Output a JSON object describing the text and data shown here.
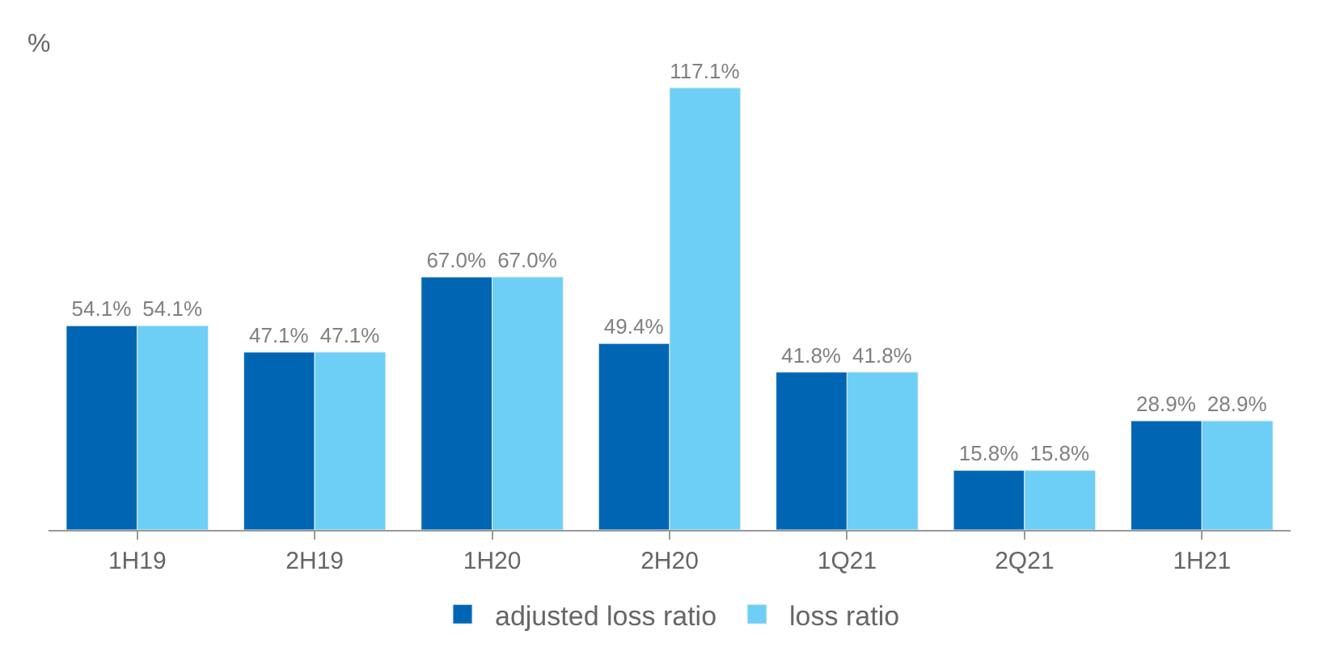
{
  "chart_data": {
    "type": "bar",
    "ylabel": "%",
    "categories": [
      "1H19",
      "2H19",
      "1H20",
      "2H20",
      "1Q21",
      "2Q21",
      "1H21"
    ],
    "series": [
      {
        "name": "adjusted loss ratio",
        "color": "#0066b3",
        "values": [
          54.1,
          47.1,
          67.0,
          49.4,
          41.8,
          15.8,
          28.9
        ],
        "value_labels": [
          "54.1%",
          "47.1%",
          "67.0%",
          "49.4%",
          "41.8%",
          "15.8%",
          "28.9%"
        ]
      },
      {
        "name": "loss ratio",
        "color": "#6ecff6",
        "values": [
          54.1,
          47.1,
          67.0,
          117.1,
          41.8,
          15.8,
          28.9
        ],
        "value_labels": [
          "54.1%",
          "47.1%",
          "67.0%",
          "117.1%",
          "41.8%",
          "15.8%",
          "28.9%"
        ]
      }
    ],
    "legend": "bottom"
  }
}
